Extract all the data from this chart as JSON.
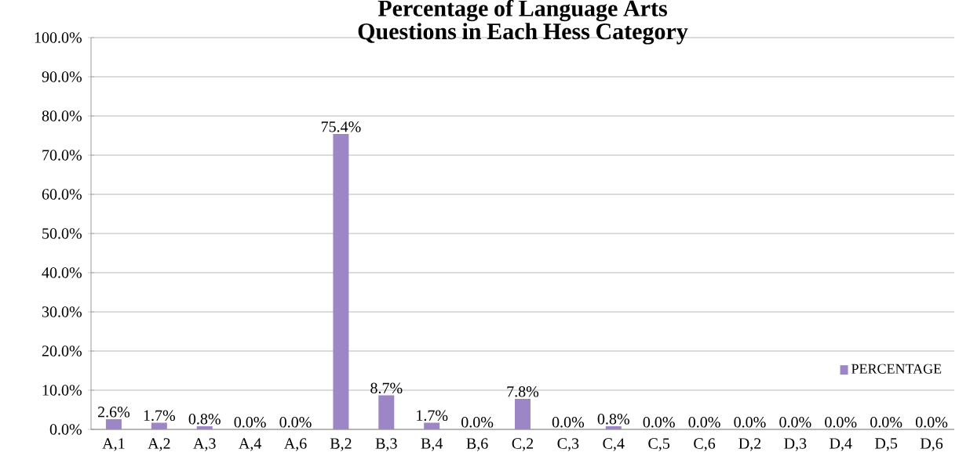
{
  "chart_data": {
    "type": "bar",
    "title": "Percentage of Language Arts Questions in Each Hess Category",
    "categories": [
      "A,1",
      "A,2",
      "A,3",
      "A,4",
      "A,6",
      "B,2",
      "B,3",
      "B,4",
      "B,6",
      "C,2",
      "C,3",
      "C,4",
      "C,5",
      "C,6",
      "D,2",
      "D,3",
      "D,4",
      "D,5",
      "D,6"
    ],
    "series": [
      {
        "name": "PERCENTAGE",
        "color": "#9d86c6",
        "values": [
          2.6,
          1.7,
          0.8,
          0.0,
          0.0,
          75.4,
          8.7,
          1.7,
          0.0,
          7.8,
          0.0,
          0.8,
          0.0,
          0.0,
          0.0,
          0.0,
          0.0,
          0.0,
          0.0
        ],
        "value_labels": [
          "2.6%",
          "1.7%",
          "0.8%",
          "0.0%",
          "0.0%",
          "75.4%",
          "8.7%",
          "1.7%",
          "0.0%",
          "7.8%",
          "0.0%",
          "0.8%",
          "0.0%",
          "0.0%",
          "0.0%",
          "0.0%",
          "0.0%",
          "0.0%",
          "0.0%"
        ]
      }
    ],
    "ylim": [
      0,
      100
    ],
    "yticks": [
      {
        "value": 0,
        "label": "0.0%"
      },
      {
        "value": 10,
        "label": "10.0%"
      },
      {
        "value": 20,
        "label": "20.0%"
      },
      {
        "value": 30,
        "label": "30.0%"
      },
      {
        "value": 40,
        "label": "40.0%"
      },
      {
        "value": 50,
        "label": "50.0%"
      },
      {
        "value": 60,
        "label": "60.0%"
      },
      {
        "value": 70,
        "label": "70.0%"
      },
      {
        "value": 80,
        "label": "80.0%"
      },
      {
        "value": 90,
        "label": "90.0%"
      },
      {
        "value": 100,
        "label": "100.0%"
      }
    ],
    "grid": "y",
    "legend": "bottom right"
  }
}
